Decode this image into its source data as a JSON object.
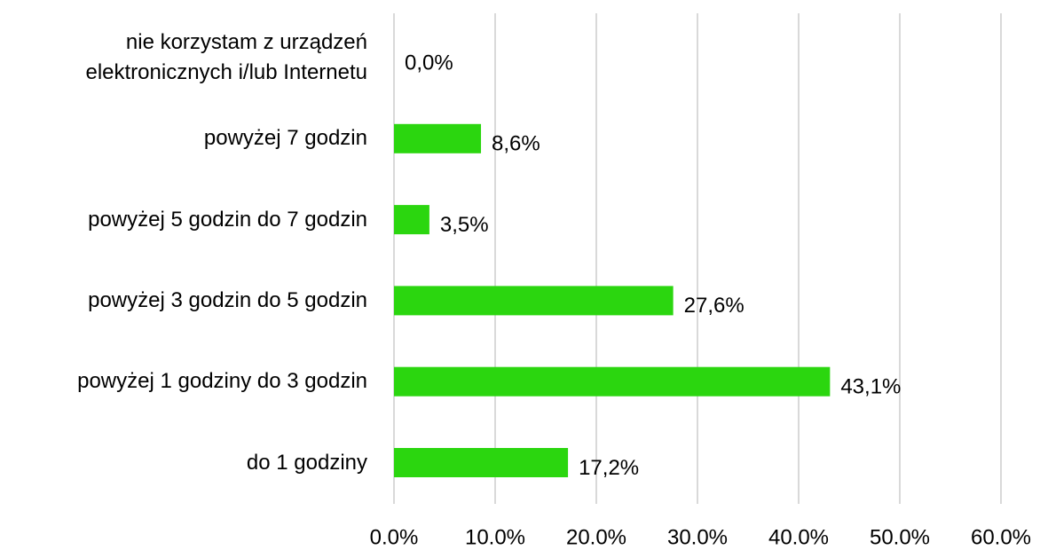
{
  "chart_data": {
    "type": "hbar",
    "categories": [
      "nie korzystam z urządzeń elektronicznych i/lub Internetu",
      "powyżej 7 godzin",
      "powyżej 5 godzin do 7 godzin",
      "powyżej 3 godzin do 5 godzin",
      "powyżej 1 godziny do 3 godzin",
      "do 1 godziny"
    ],
    "values": [
      0,
      8.6,
      3.5,
      27.6,
      43.1,
      17.2
    ],
    "value_labels": [
      "0,0%",
      "8,6%",
      "3,5%",
      "27,6%",
      "43,1%",
      "17,2%"
    ],
    "color": "#2bd60f",
    "xlim": [
      0,
      60
    ],
    "xticks": [
      {
        "value": 0,
        "label": "0.0%"
      },
      {
        "value": 10,
        "label": "10.0%"
      },
      {
        "value": 20,
        "label": "20.0%"
      },
      {
        "value": 30,
        "label": "30.0%"
      },
      {
        "value": 40,
        "label": "40.0%"
      },
      {
        "value": 50,
        "label": "50.0%"
      },
      {
        "value": 60,
        "label": "60.0%"
      }
    ],
    "grid": true
  }
}
